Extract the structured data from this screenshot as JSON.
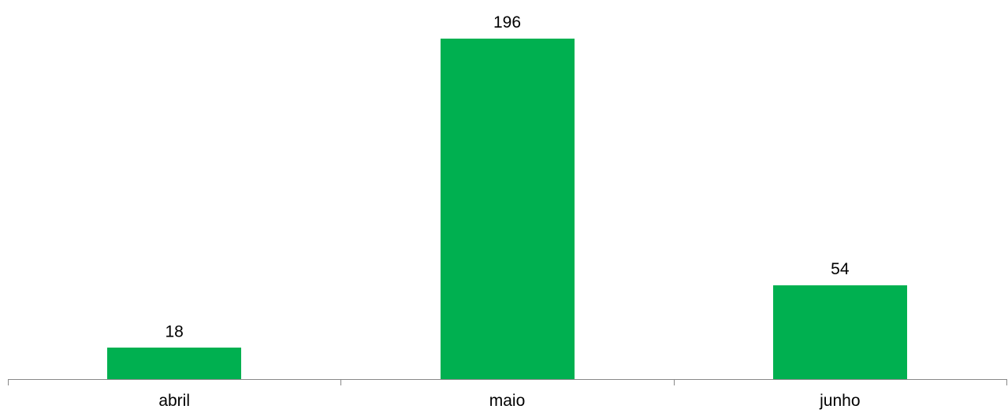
{
  "chart_data": {
    "type": "bar",
    "categories": [
      "abril",
      "maio",
      "junho"
    ],
    "values": [
      18,
      196,
      54
    ],
    "data_labels": [
      "18",
      "196",
      "54"
    ],
    "title": "",
    "xlabel": "",
    "ylabel": "",
    "ylim": [
      0,
      196
    ],
    "grid": false,
    "legend": "none",
    "bar_color": "#00B050",
    "axis_color": "#898989"
  }
}
